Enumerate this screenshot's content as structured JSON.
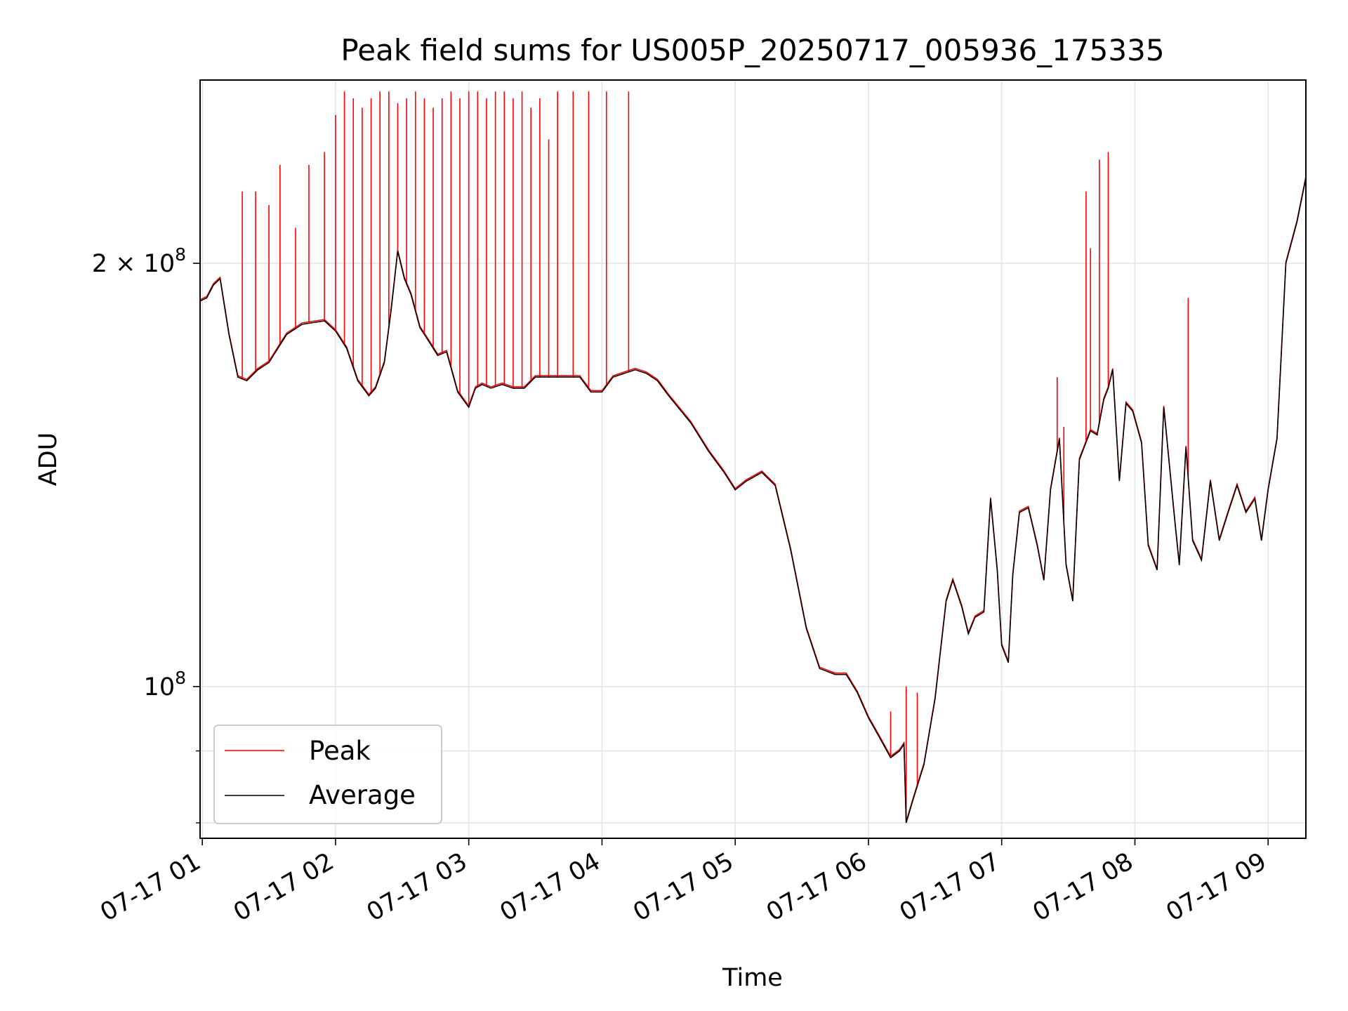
{
  "chart_data": {
    "type": "line",
    "title": "Peak field sums for US005P_20250717_005936_175335",
    "xlabel": "Time",
    "ylabel": "ADU",
    "yscale": "log",
    "xlim": [
      "2025-07-17 00:59",
      "2025-07-17 09:17"
    ],
    "ylim": [
      78000000,
      270000000
    ],
    "x_ticks": [
      "07-17 01",
      "07-17 02",
      "07-17 03",
      "07-17 04",
      "07-17 05",
      "07-17 06",
      "07-17 07",
      "07-17 08",
      "07-17 09"
    ],
    "y_ticks": [
      {
        "value": 100000000,
        "base": "10",
        "exp": "8"
      },
      {
        "value": 200000000,
        "base": "2 × 10",
        "exp": "8"
      }
    ],
    "grid": true,
    "legend_position": "lower-left",
    "colors": {
      "peak": "#ff0000",
      "average": "#000000",
      "grid": "#e5e5e5"
    },
    "series": [
      {
        "name": "Average",
        "x": [
          "2025-07-17 00:59",
          "2025-07-17 01:02",
          "2025-07-17 01:05",
          "2025-07-17 01:08",
          "2025-07-17 01:12",
          "2025-07-17 01:16",
          "2025-07-17 01:20",
          "2025-07-17 01:25",
          "2025-07-17 01:30",
          "2025-07-17 01:38",
          "2025-07-17 01:45",
          "2025-07-17 01:55",
          "2025-07-17 02:00",
          "2025-07-17 02:05",
          "2025-07-17 02:10",
          "2025-07-17 02:15",
          "2025-07-17 02:18",
          "2025-07-17 02:22",
          "2025-07-17 02:25",
          "2025-07-17 02:28",
          "2025-07-17 02:31",
          "2025-07-17 02:34",
          "2025-07-17 02:38",
          "2025-07-17 02:42",
          "2025-07-17 02:46",
          "2025-07-17 02:50",
          "2025-07-17 02:55",
          "2025-07-17 03:00",
          "2025-07-17 03:03",
          "2025-07-17 03:06",
          "2025-07-17 03:10",
          "2025-07-17 03:15",
          "2025-07-17 03:20",
          "2025-07-17 03:25",
          "2025-07-17 03:30",
          "2025-07-17 03:40",
          "2025-07-17 03:50",
          "2025-07-17 03:55",
          "2025-07-17 04:00",
          "2025-07-17 04:05",
          "2025-07-17 04:10",
          "2025-07-17 04:15",
          "2025-07-17 04:20",
          "2025-07-17 04:25",
          "2025-07-17 04:30",
          "2025-07-17 04:40",
          "2025-07-17 04:48",
          "2025-07-17 04:55",
          "2025-07-17 05:00",
          "2025-07-17 05:05",
          "2025-07-17 05:12",
          "2025-07-17 05:18",
          "2025-07-17 05:25",
          "2025-07-17 05:32",
          "2025-07-17 05:38",
          "2025-07-17 05:45",
          "2025-07-17 05:50",
          "2025-07-17 05:55",
          "2025-07-17 06:00",
          "2025-07-17 06:05",
          "2025-07-17 06:10",
          "2025-07-17 06:14",
          "2025-07-17 06:16",
          "2025-07-17 06:17",
          "2025-07-17 06:20",
          "2025-07-17 06:25",
          "2025-07-17 06:30",
          "2025-07-17 06:35",
          "2025-07-17 06:38",
          "2025-07-17 06:42",
          "2025-07-17 06:45",
          "2025-07-17 06:48",
          "2025-07-17 06:52",
          "2025-07-17 06:55",
          "2025-07-17 06:58",
          "2025-07-17 07:00",
          "2025-07-17 07:03",
          "2025-07-17 07:05",
          "2025-07-17 07:08",
          "2025-07-17 07:12",
          "2025-07-17 07:16",
          "2025-07-17 07:19",
          "2025-07-17 07:22",
          "2025-07-17 07:26",
          "2025-07-17 07:29",
          "2025-07-17 07:32",
          "2025-07-17 07:35",
          "2025-07-17 07:40",
          "2025-07-17 07:43",
          "2025-07-17 07:46",
          "2025-07-17 07:48",
          "2025-07-17 07:50",
          "2025-07-17 07:53",
          "2025-07-17 07:56",
          "2025-07-17 07:59",
          "2025-07-17 08:03",
          "2025-07-17 08:06",
          "2025-07-17 08:10",
          "2025-07-17 08:13",
          "2025-07-17 08:18",
          "2025-07-17 08:20",
          "2025-07-17 08:23",
          "2025-07-17 08:26",
          "2025-07-17 08:30",
          "2025-07-17 08:34",
          "2025-07-17 08:38",
          "2025-07-17 08:42",
          "2025-07-17 08:46",
          "2025-07-17 08:50",
          "2025-07-17 08:54",
          "2025-07-17 08:57",
          "2025-07-17 09:00",
          "2025-07-17 09:04",
          "2025-07-17 09:08",
          "2025-07-17 09:13",
          "2025-07-17 09:17"
        ],
        "values": [
          188000000,
          189000000,
          193000000,
          195000000,
          178000000,
          166000000,
          165000000,
          168000000,
          170000000,
          178000000,
          181000000,
          182000000,
          179000000,
          174000000,
          165000000,
          161000000,
          163000000,
          170000000,
          185000000,
          204000000,
          195000000,
          190000000,
          180000000,
          176000000,
          172000000,
          173000000,
          162000000,
          158000000,
          163000000,
          164000000,
          163000000,
          164000000,
          163000000,
          163000000,
          166000000,
          166000000,
          166000000,
          162000000,
          162000000,
          166000000,
          167000000,
          168000000,
          167000000,
          165000000,
          161000000,
          154000000,
          147000000,
          142000000,
          138000000,
          140000000,
          142000000,
          139000000,
          125000000,
          110000000,
          103000000,
          102000000,
          102000000,
          99000000,
          95000000,
          92000000,
          89000000,
          90000000,
          91000000,
          80000000,
          83000000,
          88000000,
          98000000,
          115000000,
          119000000,
          114000000,
          109000000,
          112000000,
          113000000,
          136000000,
          121000000,
          107000000,
          104000000,
          120000000,
          133000000,
          134000000,
          126000000,
          119000000,
          138000000,
          150000000,
          122000000,
          115000000,
          145000000,
          152000000,
          151000000,
          160000000,
          163000000,
          168000000,
          140000000,
          159000000,
          157000000,
          149000000,
          126000000,
          121000000,
          158000000,
          131000000,
          122000000,
          148000000,
          127000000,
          123000000,
          140000000,
          127000000,
          133000000,
          139000000,
          133000000,
          136000000,
          127000000,
          138000000,
          150000000,
          200000000,
          214000000,
          230000000
        ]
      },
      {
        "name": "Peak",
        "x": [
          "2025-07-17 01:18",
          "2025-07-17 01:24",
          "2025-07-17 01:30",
          "2025-07-17 01:35",
          "2025-07-17 01:42",
          "2025-07-17 01:48",
          "2025-07-17 01:55",
          "2025-07-17 02:00",
          "2025-07-17 02:04",
          "2025-07-17 02:08",
          "2025-07-17 02:12",
          "2025-07-17 02:16",
          "2025-07-17 02:20",
          "2025-07-17 02:24",
          "2025-07-17 02:28",
          "2025-07-17 02:32",
          "2025-07-17 02:36",
          "2025-07-17 02:40",
          "2025-07-17 02:44",
          "2025-07-17 02:48",
          "2025-07-17 02:52",
          "2025-07-17 02:56",
          "2025-07-17 03:00",
          "2025-07-17 03:04",
          "2025-07-17 03:08",
          "2025-07-17 03:12",
          "2025-07-17 03:16",
          "2025-07-17 03:20",
          "2025-07-17 03:24",
          "2025-07-17 03:28",
          "2025-07-17 03:32",
          "2025-07-17 03:36",
          "2025-07-17 03:40",
          "2025-07-17 03:47",
          "2025-07-17 03:54",
          "2025-07-17 04:02",
          "2025-07-17 04:12",
          "2025-07-17 06:10",
          "2025-07-17 06:17",
          "2025-07-17 06:22",
          "2025-07-17 07:25",
          "2025-07-17 07:28",
          "2025-07-17 07:38",
          "2025-07-17 07:40",
          "2025-07-17 07:44",
          "2025-07-17 07:48",
          "2025-07-17 08:24"
        ],
        "values": [
          225000000,
          225000000,
          220000000,
          235000000,
          212000000,
          235000000,
          240000000,
          255000000,
          265000000,
          262000000,
          258000000,
          262000000,
          265000000,
          265000000,
          260000000,
          262000000,
          265000000,
          262000000,
          258000000,
          262000000,
          265000000,
          262000000,
          265000000,
          265000000,
          262000000,
          265000000,
          265000000,
          262000000,
          265000000,
          258000000,
          262000000,
          245000000,
          265000000,
          265000000,
          265000000,
          265000000,
          265000000,
          96000000,
          100000000,
          99000000,
          166000000,
          153000000,
          225000000,
          205000000,
          237000000,
          240000000,
          189000000
        ]
      }
    ]
  }
}
